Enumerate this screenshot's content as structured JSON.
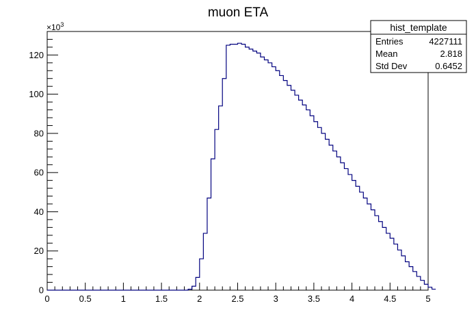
{
  "chart_data": {
    "type": "bar",
    "title": "muon ETA",
    "xlabel": "",
    "ylabel": "",
    "xlim": [
      0,
      5
    ],
    "ylim": [
      0,
      132
    ],
    "y_scale_label": "×10",
    "y_scale_exponent": "3",
    "x_ticks": [
      "0",
      "0.5",
      "1",
      "1.5",
      "2",
      "2.5",
      "3",
      "3.5",
      "4",
      "4.5",
      "5"
    ],
    "y_ticks": [
      "0",
      "20",
      "40",
      "60",
      "80",
      "100",
      "120"
    ],
    "bin_start": 0,
    "bin_width": 0.05,
    "values": [
      0,
      0,
      0,
      0,
      0,
      0,
      0,
      0,
      0,
      0,
      0,
      0,
      0,
      0,
      0,
      0,
      0,
      0,
      0,
      0,
      0,
      0,
      0,
      0,
      0,
      0,
      0,
      0,
      0,
      0,
      0,
      0,
      0,
      0,
      0,
      0,
      0,
      0.5,
      2,
      6.5,
      16,
      29,
      47,
      67,
      82,
      94,
      108,
      125,
      125.5,
      125.5,
      126,
      125.5,
      124,
      123,
      122,
      121,
      119,
      117.5,
      116,
      114,
      112,
      109.5,
      107,
      104.5,
      102,
      99.5,
      97,
      94.5,
      92,
      89,
      86,
      83,
      80,
      77,
      74,
      71,
      68,
      65,
      62,
      59,
      56,
      53,
      50,
      47,
      44,
      41,
      38,
      35,
      32,
      29,
      26.5,
      23.5,
      20.5,
      17.5,
      14.5,
      12,
      9.5,
      7,
      5,
      3,
      1.5,
      0.5
    ],
    "line_color": "#00007f",
    "stats_box": {
      "title": "hist_template",
      "rows": [
        {
          "label": "Entries",
          "value": "4227111"
        },
        {
          "label": "Mean",
          "value": "2.818"
        },
        {
          "label": "Std Dev",
          "value": "0.6452"
        }
      ]
    }
  }
}
